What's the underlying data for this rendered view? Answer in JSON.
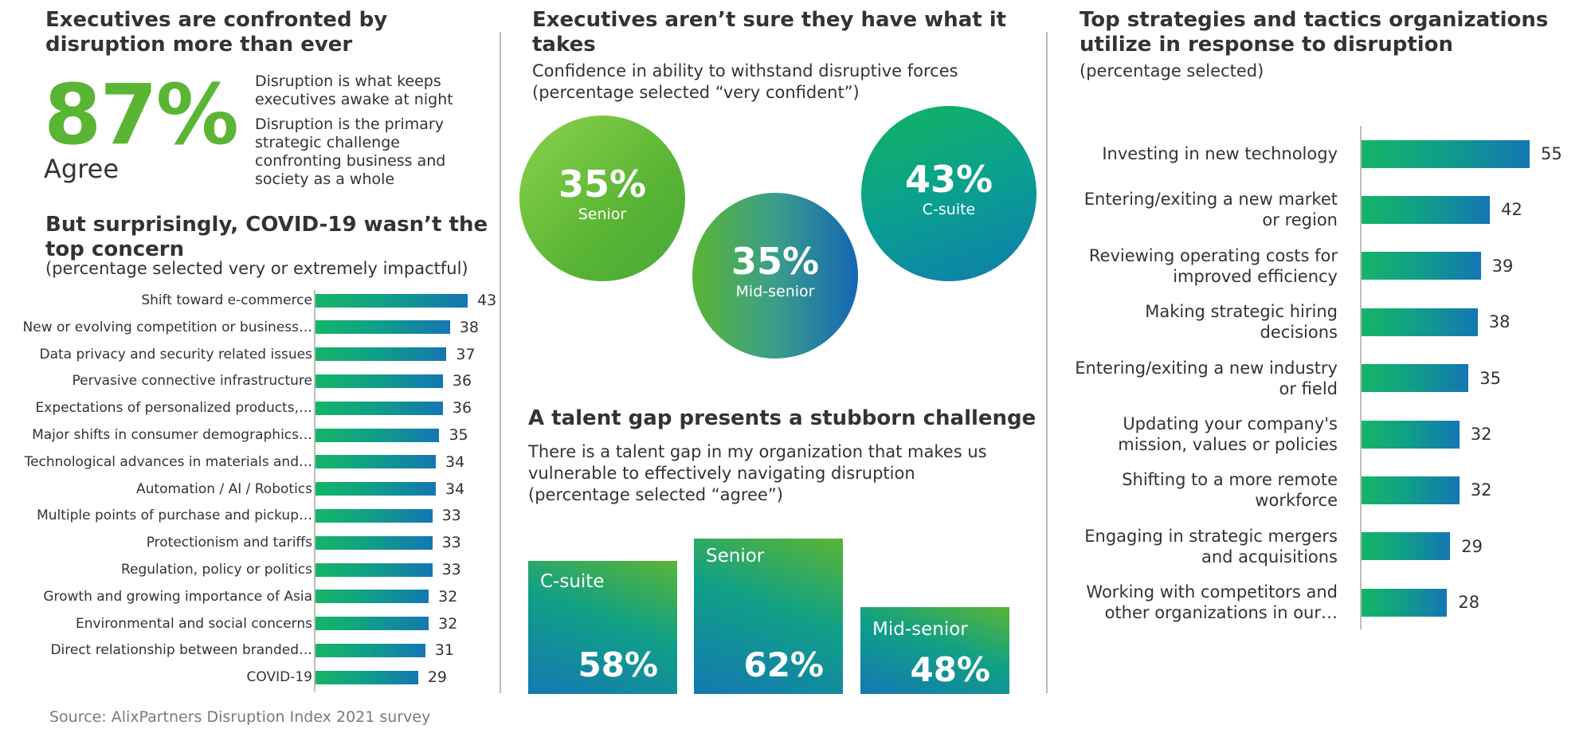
{
  "panel1": {
    "title": "Executives are confronted by disruption more than ever",
    "stat": "87%",
    "stat_label": "Agree",
    "statement1": "Disruption is what keeps executives awake at night",
    "statement2": "Disruption is the primary strategic challenge confronting business and society as a whole",
    "covid_title": "But surprisingly, COVID-19 wasn’t the top concern",
    "covid_subtitle": "(percentage selected very or extremely impactful)"
  },
  "panel2": {
    "title": "Executives aren’t sure they have what it takes",
    "subtitle_line1": "Confidence in ability to withstand disruptive forces",
    "subtitle_line2": "(percentage selected “very confident”)",
    "talent_title": "A talent gap presents a stubborn challenge",
    "talent_line1": "There is a talent gap in my organization that makes us",
    "talent_line2": "vulnerable to effectively navigating disruption",
    "talent_line3": "(percentage selected “agree”)"
  },
  "panel3": {
    "title": "Top strategies and tactics organizations utilize in response to disruption",
    "subtitle": "(percentage selected)"
  },
  "source": "Source: AlixPartners Disruption Index 2021 survey",
  "colors": {
    "green": "#5ab534",
    "teal": "#10a086",
    "blue": "#1476b3"
  },
  "chart_data": [
    {
      "type": "bar",
      "orientation": "horizontal",
      "categories": [
        "Shift toward e-commerce",
        "New or evolving competition or business…",
        "Data privacy and security related issues",
        "Pervasive connective infrastructure",
        "Expectations of personalized products,…",
        "Major shifts in consumer demographics…",
        "Technological advances in materials and…",
        "Automation / AI / Robotics",
        "Multiple points of purchase and pickup…",
        "Protectionism and tariffs",
        "Regulation, policy or politics",
        "Growth and growing importance of Asia",
        "Environmental and social concerns",
        "Direct relationship between branded…",
        "COVID-19"
      ],
      "values": [
        43,
        38,
        37,
        36,
        36,
        35,
        34,
        34,
        33,
        33,
        33,
        32,
        32,
        31,
        29
      ],
      "xlim": [
        0,
        43
      ],
      "grid": false
    },
    {
      "type": "bubble",
      "categories": [
        "Senior",
        "Mid-senior",
        "C-suite"
      ],
      "values": [
        "35%",
        "35%",
        "43%"
      ]
    },
    {
      "type": "bar",
      "categories": [
        "C-suite",
        "Senior",
        "Mid-senior"
      ],
      "values": [
        "58%",
        "62%",
        "48%"
      ]
    },
    {
      "type": "bar",
      "orientation": "horizontal",
      "categories": [
        [
          "Investing in new technology"
        ],
        [
          "Entering/exiting a new market",
          "or region"
        ],
        [
          "Reviewing operating costs for",
          "improved efficiency"
        ],
        [
          "Making strategic hiring",
          "decisions"
        ],
        [
          "Entering/exiting a new industry",
          "or field"
        ],
        [
          "Updating your company's",
          "mission, values or policies"
        ],
        [
          "Shifting to a more remote",
          "workforce"
        ],
        [
          "Engaging in strategic mergers",
          "and acquisitions"
        ],
        [
          "Working with competitors and",
          "other organizations in our…"
        ]
      ],
      "values": [
        55,
        42,
        39,
        38,
        35,
        32,
        32,
        29,
        28
      ],
      "xlim": [
        0,
        55
      ],
      "grid": false
    }
  ]
}
